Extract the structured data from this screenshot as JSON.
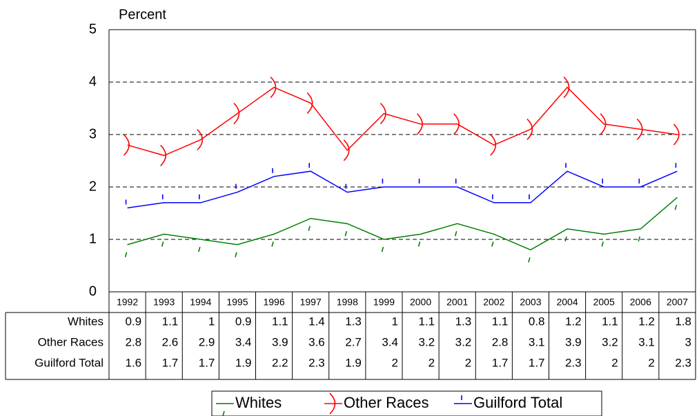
{
  "chart_data": {
    "type": "line",
    "y_label": "Percent",
    "categories": [
      "1992",
      "1993",
      "1994",
      "1995",
      "1996",
      "1997",
      "1998",
      "1999",
      "2000",
      "2001",
      "2002",
      "2003",
      "2004",
      "2005",
      "2006",
      "2007"
    ],
    "series": [
      {
        "name": "Whites",
        "color": "#008000",
        "values": [
          0.9,
          1.1,
          1,
          0.9,
          1.1,
          1.4,
          1.3,
          1,
          1.1,
          1.3,
          1.1,
          0.8,
          1.2,
          1.1,
          1.2,
          1.8
        ]
      },
      {
        "name": "Other Races",
        "color": "#ff0000",
        "values": [
          2.8,
          2.6,
          2.9,
          3.4,
          3.9,
          3.6,
          2.7,
          3.4,
          3.2,
          3.2,
          2.8,
          3.1,
          3.9,
          3.2,
          3.1,
          3
        ]
      },
      {
        "name": "Guilford Total",
        "color": "#0000ff",
        "values": [
          1.6,
          1.7,
          1.7,
          1.9,
          2.2,
          2.3,
          1.9,
          2,
          2,
          2,
          1.7,
          1.7,
          2.3,
          2,
          2,
          2.3
        ]
      }
    ],
    "ylim": [
      0,
      5
    ],
    "yticks": [
      0,
      1,
      2,
      3,
      4,
      5
    ],
    "grid": true,
    "legend": "bottom"
  }
}
